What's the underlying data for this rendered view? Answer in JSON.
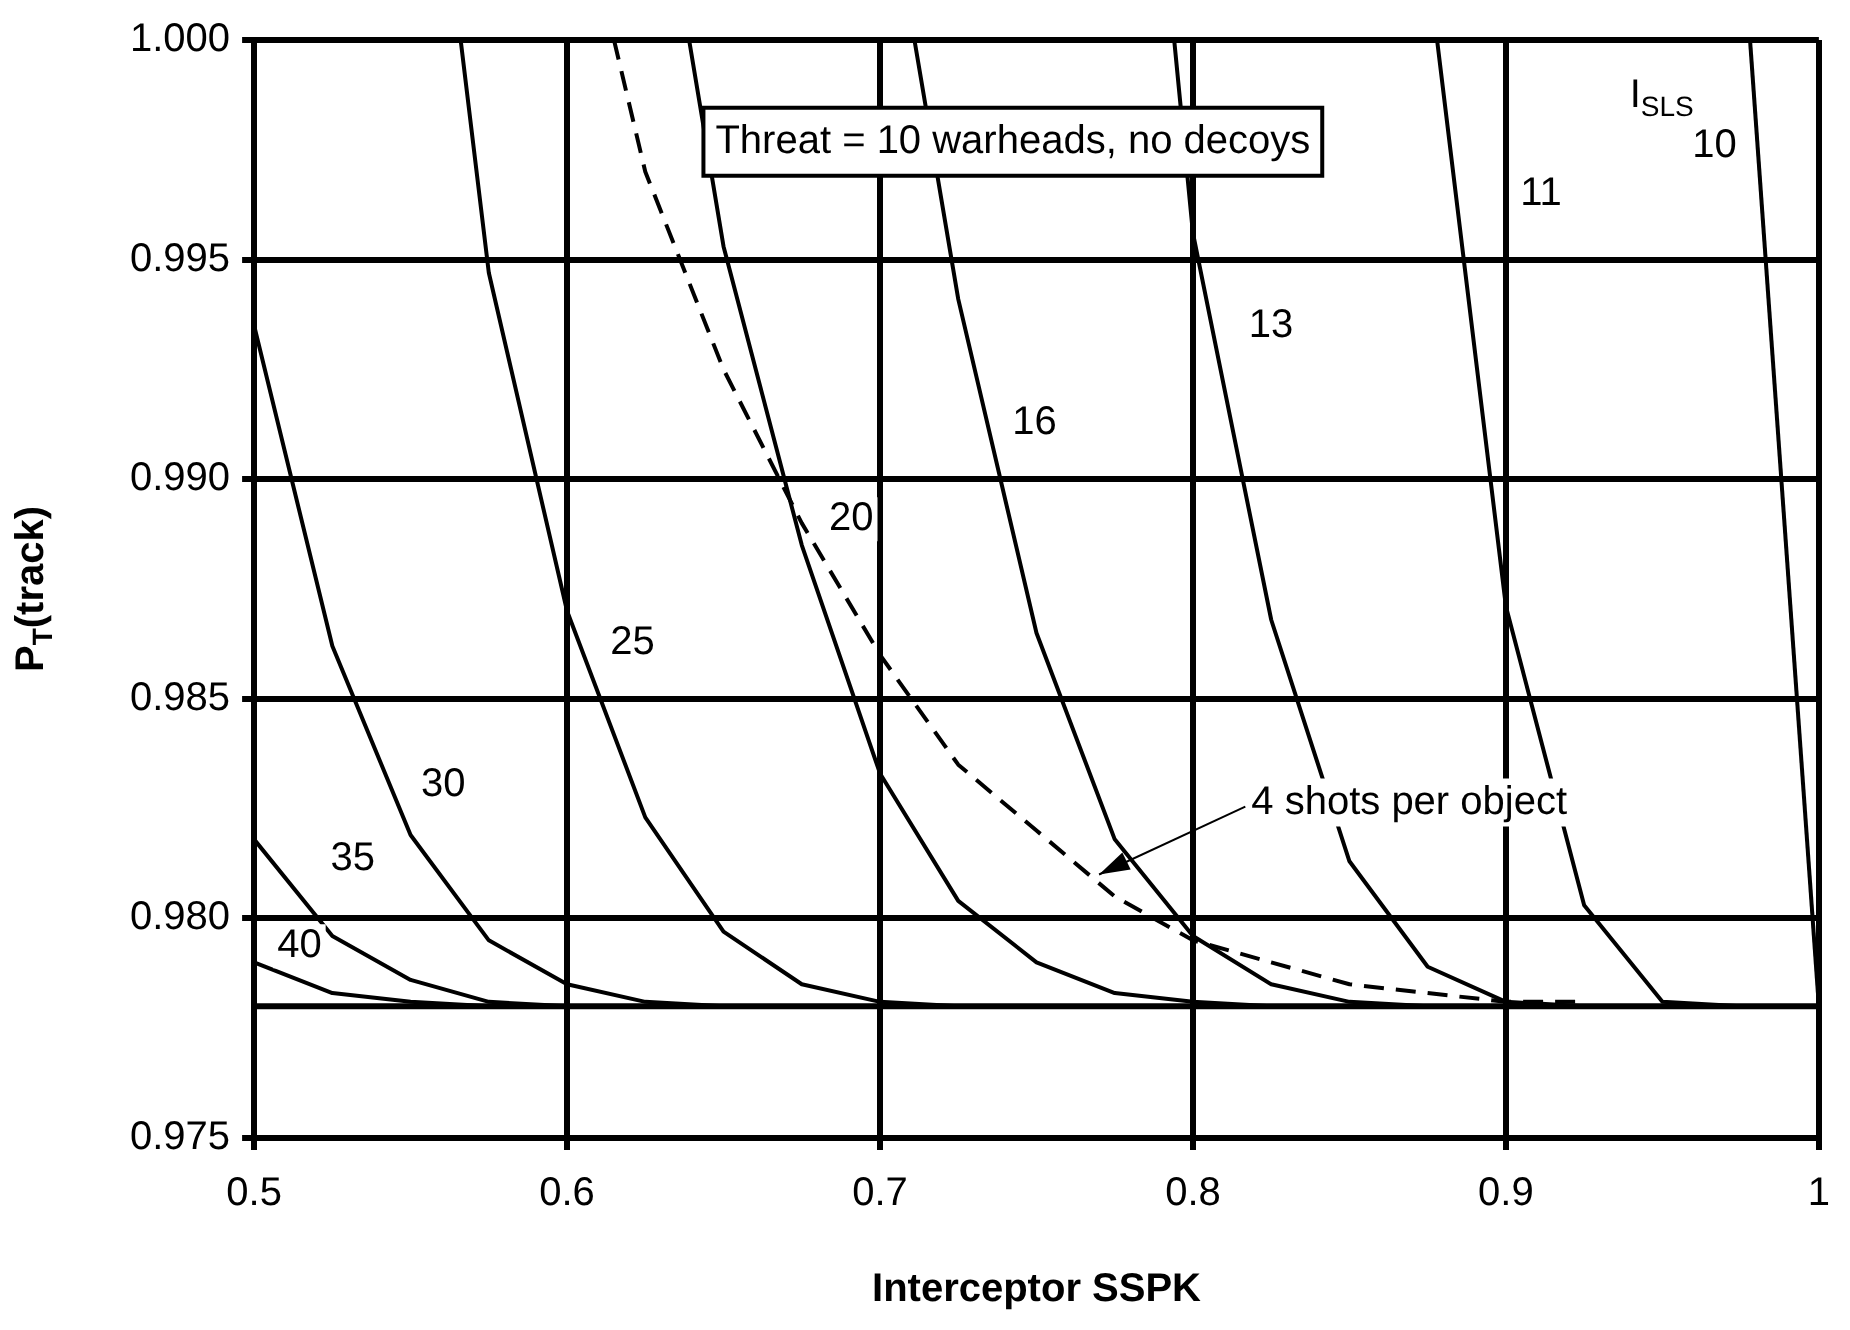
{
  "chart_data": {
    "type": "line",
    "xlabel": "Interceptor SSPK",
    "ylabel": "P$_{T}$(track)",
    "annotations": [
      "Threat = 10 warheads, no decoys",
      "I$_{SLS}$",
      {
        "text": "4 shots per object",
        "x": 0.77,
        "y": 0.981
      }
    ],
    "xlim": [
      0.5,
      1
    ],
    "xticks": [
      0.5,
      0.6,
      0.7,
      0.8,
      0.9,
      1
    ],
    "ylim": [
      0.975,
      1
    ],
    "yticks": [
      {
        "value": 0.975,
        "label": "0.975"
      },
      {
        "value": 0.98,
        "label": "0.980"
      },
      {
        "value": 0.985,
        "label": "0.985"
      },
      {
        "value": 0.99,
        "label": "0.990"
      },
      {
        "value": 0.995,
        "label": "0.995"
      },
      {
        "value": 1,
        "label": "1.000"
      }
    ],
    "grid": true,
    "legend": false,
    "marker": "none",
    "line_style": "solid",
    "ref_lines": [
      {
        "axis": "y",
        "value": 0.978,
        "color": "#000000"
      }
    ],
    "series": [
      {
        "name": "10",
        "color": "#000000",
        "x": [
          0.978,
          1.0
        ],
        "values": [
          1.0,
          0.978
        ]
      },
      {
        "name": "11",
        "color": "#000000",
        "x": [
          0.878,
          0.9,
          0.925,
          0.95,
          0.975
        ],
        "values": [
          1.0,
          0.9871,
          0.9803,
          0.9781,
          0.978
        ]
      },
      {
        "name": "13",
        "color": "#000000",
        "x": [
          0.794,
          0.8,
          0.825,
          0.85,
          0.875,
          0.9,
          0.925
        ],
        "values": [
          1.0,
          0.9956,
          0.9868,
          0.9813,
          0.9789,
          0.9781,
          0.978
        ]
      },
      {
        "name": "16",
        "color": "#000000",
        "x": [
          0.711,
          0.725,
          0.75,
          0.775,
          0.8,
          0.825,
          0.85,
          0.875
        ],
        "values": [
          1.0,
          0.9941,
          0.9865,
          0.9818,
          0.9796,
          0.9785,
          0.9781,
          0.978
        ]
      },
      {
        "name": "20",
        "color": "#000000",
        "x": [
          0.639,
          0.65,
          0.675,
          0.7,
          0.725,
          0.75,
          0.775,
          0.8,
          0.825
        ],
        "values": [
          1.0,
          0.9953,
          0.9885,
          0.9833,
          0.9804,
          0.979,
          0.9783,
          0.9781,
          0.978
        ]
      },
      {
        "name": "25",
        "color": "#000000",
        "x": [
          0.566,
          0.575,
          0.6,
          0.625,
          0.65,
          0.675,
          0.7,
          0.725
        ],
        "values": [
          1.0,
          0.9947,
          0.987,
          0.9823,
          0.9797,
          0.9785,
          0.9781,
          0.978
        ]
      },
      {
        "name": "30",
        "color": "#000000",
        "x": [
          0.5,
          0.525,
          0.55,
          0.575,
          0.6,
          0.625,
          0.65
        ],
        "values": [
          0.9935,
          0.9862,
          0.9819,
          0.9795,
          0.9785,
          0.9781,
          0.978
        ]
      },
      {
        "name": "35",
        "color": "#000000",
        "x": [
          0.5,
          0.525,
          0.55,
          0.575,
          0.6
        ],
        "values": [
          0.9818,
          0.9796,
          0.9786,
          0.9781,
          0.978
        ]
      },
      {
        "name": "40",
        "color": "#000000",
        "x": [
          0.5,
          0.525,
          0.55,
          0.575
        ],
        "values": [
          0.979,
          0.9783,
          0.9781,
          0.978
        ]
      },
      {
        "color": "#000000",
        "line_style": "dashed",
        "x": [
          0.615,
          0.625,
          0.65,
          0.675,
          0.7,
          0.725,
          0.75,
          0.775,
          0.8,
          0.825,
          0.85,
          0.875,
          0.9,
          0.925
        ],
        "values": [
          1.0,
          0.997,
          0.9925,
          0.989,
          0.986,
          0.9835,
          0.982,
          0.9805,
          0.9795,
          0.979,
          0.9785,
          0.9783,
          0.9781,
          0.9781
        ]
      }
    ]
  }
}
